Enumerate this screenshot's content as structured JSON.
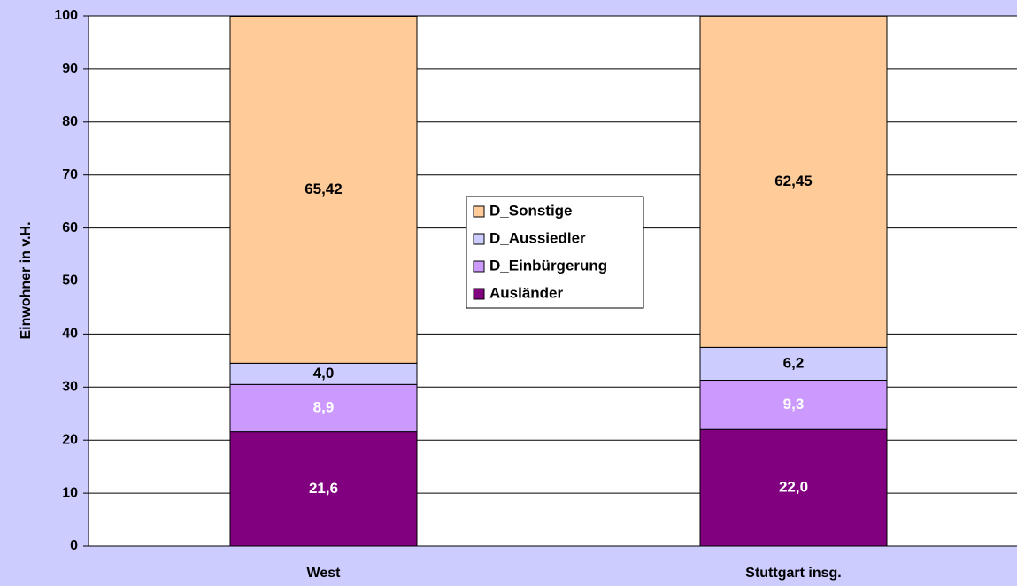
{
  "chart_data": {
    "type": "stacked_bar",
    "y_label": "Einwohner in v.H.",
    "categories": [
      "West",
      "Stuttgart insg."
    ],
    "series": [
      {
        "name": "Ausländer",
        "color": "#800080",
        "label_color": "#ffffff",
        "values": [
          21.6,
          22.0
        ],
        "value_labels": [
          "21,6",
          "22,0"
        ]
      },
      {
        "name": "D_Einbürgerung",
        "color": "#cc99ff",
        "label_color": "#ffffff",
        "values": [
          8.9,
          9.3
        ],
        "value_labels": [
          "8,9",
          "9,3"
        ]
      },
      {
        "name": "D_Aussiedler",
        "color": "#ccccff",
        "label_color": "#000000",
        "values": [
          4.0,
          6.2
        ],
        "value_labels": [
          "4,0",
          "6,2"
        ]
      },
      {
        "name": "D_Sonstige",
        "color": "#ffcc99",
        "label_color": "#000000",
        "values": [
          65.42,
          62.45
        ],
        "value_labels": [
          "65,42",
          "62,45"
        ]
      }
    ],
    "ylim": [
      0,
      100
    ],
    "yticks": [
      0,
      10,
      20,
      30,
      40,
      50,
      60,
      70,
      80,
      90,
      100
    ],
    "grid": true
  }
}
